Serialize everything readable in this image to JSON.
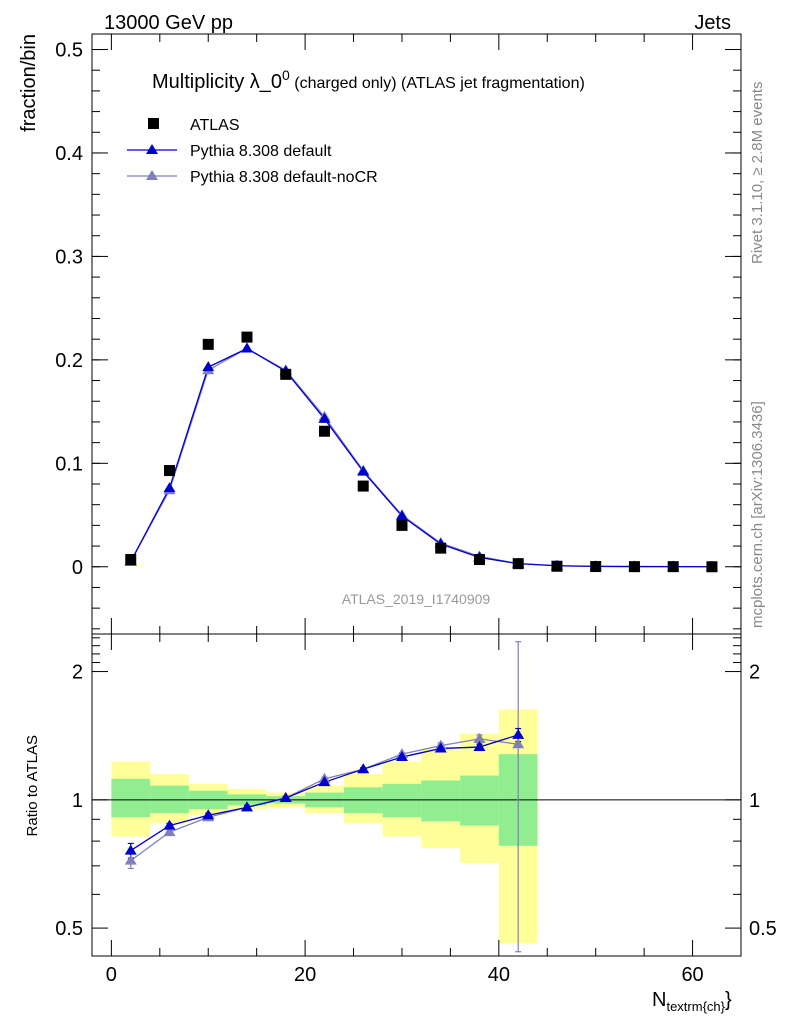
{
  "header": {
    "left": "13000 GeV pp",
    "right": "Jets"
  },
  "side_labels": {
    "top": "Rivet 3.1.10, ≥ 2.8M events",
    "bottom": "mcplots.cern.ch [arXiv:1306.3436]"
  },
  "plot": {
    "title_main": "Multiplicity λ_0",
    "title_sup": "0",
    "title_sub": " (charged only) (ATLAS jet fragmentation)",
    "watermark": "ATLAS_2019_I1740909",
    "ylabel_top": "fraction/bin",
    "ylabel_bottom": "Ratio to ATLAS",
    "xlabel_main": "N",
    "xlabel_sub": "textrm{ch}",
    "xlabel_close": "}"
  },
  "legend": [
    {
      "label": "ATLAS"
    },
    {
      "label": "Pythia 8.308 default"
    },
    {
      "label": "Pythia 8.308 default-noCR"
    }
  ],
  "colors": {
    "data": "#000000",
    "default": "#0000cc",
    "nocr": "#7f7fbf",
    "band_inner": "#90ee90",
    "band_outer": "#ffff99"
  },
  "chart_data": [
    {
      "type": "scatter",
      "panel": "main",
      "x_edges": [
        0,
        4,
        8,
        12,
        16,
        20,
        24,
        28,
        32,
        36,
        40,
        44,
        48,
        52,
        56,
        60,
        64
      ],
      "x": [
        2,
        6,
        10,
        14,
        18,
        22,
        26,
        30,
        34,
        38,
        42,
        46,
        50,
        54,
        58,
        62
      ],
      "xlim": [
        -2,
        65
      ],
      "ylim": [
        -0.065,
        0.515
      ],
      "yticks": [
        0,
        0.1,
        0.2,
        0.3,
        0.4,
        0.5
      ],
      "ytick_labels": [
        "0",
        "0.1",
        "0.2",
        "0.3",
        "0.4",
        "0.5"
      ],
      "xticks": [
        0,
        20,
        40,
        60
      ],
      "xtick_labels": [
        "0",
        "20",
        "40",
        "60"
      ],
      "series": [
        {
          "name": "ATLAS",
          "values": [
            0.007,
            0.093,
            0.215,
            0.222,
            0.186,
            0.131,
            0.078,
            0.04,
            0.018,
            0.007,
            0.003,
            0.0005,
            0.0002,
            0.0001,
            0.0001,
            0.0
          ]
        },
        {
          "name": "Pythia 8.308 default",
          "values": [
            0.005,
            0.076,
            0.193,
            0.211,
            0.189,
            0.143,
            0.092,
            0.049,
            0.022,
            0.009,
            0.003,
            0.001,
            0.0004,
            0.0002,
            0.0001,
            0.0
          ]
        },
        {
          "name": "Pythia 8.308 default-noCR",
          "values": [
            0.005,
            0.074,
            0.19,
            0.211,
            0.19,
            0.145,
            0.093,
            0.05,
            0.023,
            0.01,
            0.003,
            0.001,
            0.0004,
            0.0002,
            0.0001,
            0.0
          ]
        }
      ]
    },
    {
      "type": "line",
      "panel": "ratio",
      "ylim": [
        0.43,
        2.45
      ],
      "yticks": [
        0.5,
        1,
        2
      ],
      "ytick_labels": [
        "0.5",
        "1",
        "2"
      ],
      "band_inner_lo": [
        0.91,
        0.93,
        0.95,
        0.97,
        0.98,
        0.96,
        0.93,
        0.91,
        0.89,
        0.87,
        0.78
      ],
      "band_inner_hi": [
        1.12,
        1.08,
        1.05,
        1.03,
        1.02,
        1.04,
        1.07,
        1.09,
        1.11,
        1.14,
        1.28
      ],
      "band_outer_lo": [
        0.82,
        0.88,
        0.92,
        0.95,
        0.96,
        0.93,
        0.88,
        0.82,
        0.77,
        0.71,
        0.46
      ],
      "band_outer_hi": [
        1.23,
        1.15,
        1.09,
        1.06,
        1.04,
        1.08,
        1.15,
        1.23,
        1.32,
        1.43,
        1.63
      ],
      "series": [
        {
          "name": "Pythia 8.308 default",
          "x": [
            2,
            6,
            10,
            14,
            18,
            22,
            26,
            30,
            34,
            38,
            42
          ],
          "values": [
            0.76,
            0.87,
            0.92,
            0.96,
            1.01,
            1.1,
            1.18,
            1.26,
            1.32,
            1.33,
            1.42
          ],
          "errors": [
            0.03,
            0.01,
            0.01,
            0.01,
            0.01,
            0.01,
            0.01,
            0.01,
            0.02,
            0.02,
            0.05
          ]
        },
        {
          "name": "Pythia 8.308 default-noCR",
          "x": [
            2,
            6,
            10,
            14,
            18,
            22,
            26,
            30,
            34,
            38,
            42
          ],
          "values": [
            0.72,
            0.84,
            0.91,
            0.96,
            1.01,
            1.12,
            1.18,
            1.28,
            1.34,
            1.39,
            1.35
          ],
          "errors": [
            0.03,
            0.01,
            0.01,
            0.01,
            0.01,
            0.01,
            0.01,
            0.01,
            0.02,
            0.03,
            1.0
          ]
        }
      ]
    }
  ]
}
